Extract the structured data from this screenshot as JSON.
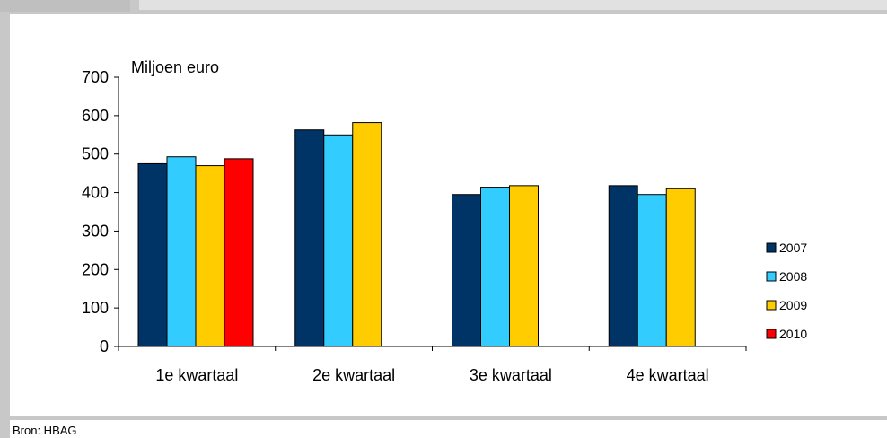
{
  "source": "Bron: HBAG",
  "colors": {
    "2007": "#003366",
    "2008": "#33ccff",
    "2009": "#ffcc00",
    "2010": "#ff0000"
  },
  "chart_data": {
    "type": "bar",
    "title": "",
    "ylabel": "Miljoen euro",
    "xlabel": "",
    "ylim": [
      0,
      700
    ],
    "yticks": [
      0,
      100,
      200,
      300,
      400,
      500,
      600,
      700
    ],
    "categories": [
      "1e kwartaal",
      "2e kwartaal",
      "3e kwartaal",
      "4e kwartaal"
    ],
    "series": [
      {
        "name": "2007",
        "values": [
          475,
          563,
          395,
          418
        ]
      },
      {
        "name": "2008",
        "values": [
          493,
          550,
          414,
          395
        ]
      },
      {
        "name": "2009",
        "values": [
          470,
          582,
          418,
          410
        ]
      },
      {
        "name": "2010",
        "values": [
          488,
          null,
          null,
          null
        ]
      }
    ],
    "legend_position": "right",
    "grid": false
  }
}
